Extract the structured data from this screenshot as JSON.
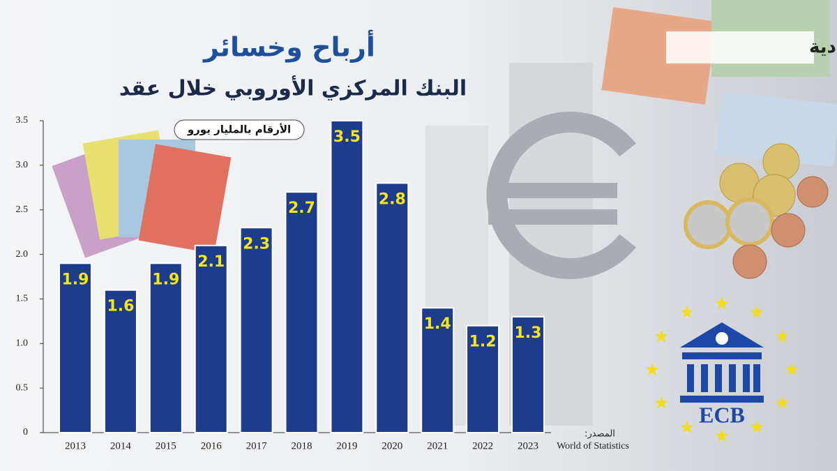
{
  "brand": "إرم الاقتصادية",
  "chart_data": {
    "type": "bar",
    "title": "أرباح وخسائر",
    "subtitle": "البنك المركزي الأوروبي خلال عقد",
    "unit_note": "الأرقام بالمليار يورو",
    "source_label": "المصدر:",
    "source": "World of Statistics",
    "categories": [
      "2013",
      "2014",
      "2015",
      "2016",
      "2017",
      "2018",
      "2019",
      "2020",
      "2021",
      "2022",
      "2023"
    ],
    "values": [
      1.9,
      1.6,
      1.9,
      2.1,
      2.3,
      2.7,
      3.5,
      2.8,
      1.4,
      1.2,
      1.3
    ],
    "color": "#1d3c8c",
    "label_color": "#f5e51b",
    "ylim": [
      0,
      3.5
    ],
    "yticks": [
      0,
      0.5,
      {
        "value": 1,
        "label": "1.0"
      },
      1.5,
      {
        "value": 2,
        "label": "2.0"
      },
      2.5,
      {
        "value": 3,
        "label": "3.0"
      },
      3.5
    ],
    "grid": false
  },
  "logo_text": "ECB"
}
